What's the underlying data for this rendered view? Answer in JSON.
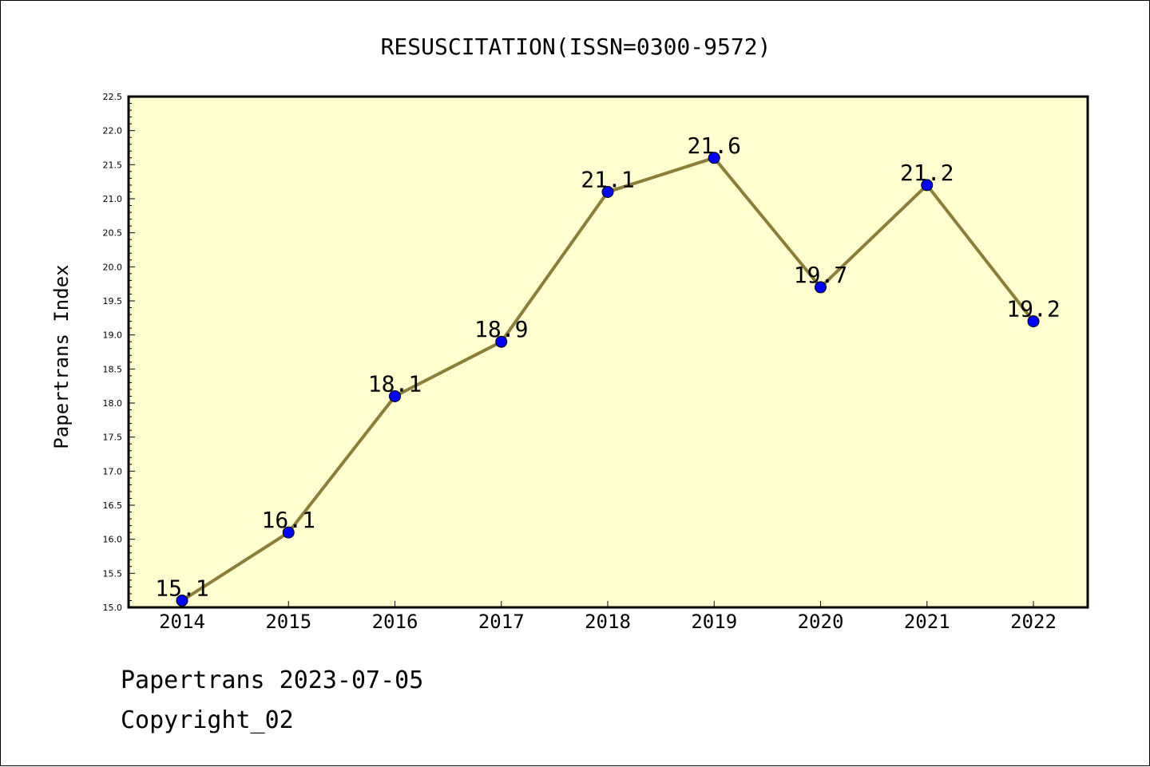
{
  "chart_data": {
    "type": "line",
    "title": "RESUSCITATION(ISSN=0300-9572)",
    "xlabel": "",
    "ylabel": "Papertrans Index",
    "categories": [
      "2014",
      "2015",
      "2016",
      "2017",
      "2018",
      "2019",
      "2020",
      "2021",
      "2022"
    ],
    "values": [
      15.1,
      16.1,
      18.1,
      18.9,
      21.1,
      21.6,
      19.7,
      21.2,
      19.2
    ],
    "data_labels": [
      "15.1",
      "16.1",
      "18.1",
      "18.9",
      "21.1",
      "21.6",
      "19.7",
      "21.2",
      "19.2"
    ],
    "ylim": [
      15.0,
      22.5
    ],
    "yticks": [
      "15.0",
      "15.5",
      "16.0",
      "16.5",
      "17.0",
      "17.5",
      "18.0",
      "18.5",
      "19.0",
      "19.5",
      "20.0",
      "20.5",
      "21.0",
      "21.5",
      "22.0",
      "22.5"
    ],
    "ytick_step": 0.5,
    "yminor_step": 0.1,
    "grid": false,
    "legend": "none"
  },
  "colors": {
    "plot_background": "#ffffd0",
    "line": "#8b7d3a",
    "marker": "#0000ff",
    "axis": "#000000"
  },
  "footer": {
    "line1": "Papertrans 2023-07-05",
    "line2": "Copyright_02"
  }
}
